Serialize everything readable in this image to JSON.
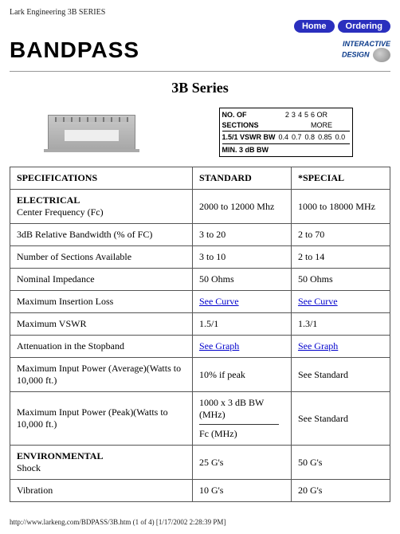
{
  "topLabel": "Lark Engineering 3B SERIES",
  "nav": {
    "home": "Home",
    "ordering": "Ordering"
  },
  "bandpass": "BANDPASS",
  "interactive": {
    "line1": "INTERACTIVE",
    "line2": "DESIGN"
  },
  "seriesTitle": "3B Series",
  "specBox": {
    "row1_label": "NO. OF SECTIONS",
    "row1_vals": [
      "2",
      "3",
      "4",
      "5",
      "6 OR MORE"
    ],
    "row2_label": "1.5/1 VSWR BW",
    "row2_vals": [
      "0.4",
      "0.7",
      "0.8",
      "0.85",
      "0.0"
    ],
    "row3": "MIN. 3 dB BW"
  },
  "headers": {
    "spec": "SPECIFICATIONS",
    "std": "STANDARD",
    "special": "*SPECIAL"
  },
  "rows": [
    {
      "specBold": "ELECTRICAL",
      "specSub": "Center Frequency (Fc)",
      "std": "2000 to 12000 Mhz",
      "special": "1000 to 18000 MHz"
    },
    {
      "spec": "3dB Relative Bandwidth (% of FC)",
      "std": "3 to 20",
      "special": "2 to 70"
    },
    {
      "spec": "Number of Sections Available",
      "std": "3 to 10",
      "special": "2 to 14"
    },
    {
      "spec": "Nominal Impedance",
      "std": "50 Ohms",
      "special": "50 Ohms"
    },
    {
      "spec": "Maximum Insertion Loss",
      "stdLink": "See Curve",
      "specialLink": "See Curve"
    },
    {
      "spec": "Maximum VSWR",
      "std": "1.5/1",
      "special": "1.3/1"
    },
    {
      "spec": "Attenuation in the Stopband",
      "stdLink": "See Graph",
      "specialLink": "See Graph"
    },
    {
      "spec": "Maximum Input Power (Average)(Watts to 10,000 ft.)",
      "std": "10% if peak",
      "special": "See Standard"
    },
    {
      "spec": "Maximum Input Power (Peak)(Watts to 10,000 ft.)",
      "stdFormula": {
        "top": "1000 x 3 dB BW (MHz)",
        "bottom": "Fc (MHz)"
      },
      "special": "See Standard"
    },
    {
      "specBold": "ENVIRONMENTAL",
      "specSub": "Shock",
      "std": "25 G's",
      "special": "50 G's"
    },
    {
      "spec": "Vibration",
      "std": "10 G's",
      "special": "20 G's"
    }
  ],
  "footer": "http://www.larkeng.com/BDPASS/3B.htm (1 of 4) [1/17/2002 2:28:39 PM]"
}
